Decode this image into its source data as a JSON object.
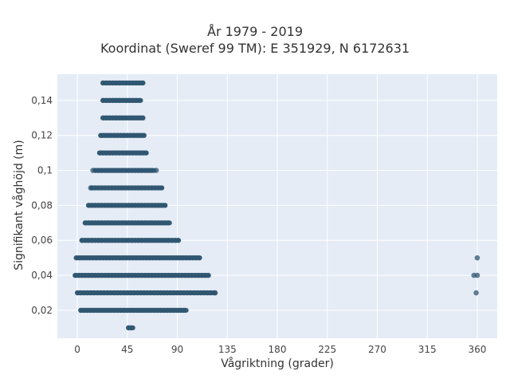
{
  "chart_data": {
    "type": "scatter",
    "title": "År 1979 - 2019",
    "subtitle": "Koordinat (Sweref 99 TM): E 351929, N 6172631",
    "xlabel": "Vågriktning (grader)",
    "ylabel": "Signifikant våghöjd (m)",
    "xlim": [
      -18,
      378
    ],
    "ylim": [
      0.004,
      0.155
    ],
    "x_ticks": [
      0,
      45,
      90,
      135,
      180,
      225,
      270,
      315,
      360
    ],
    "y_ticks": [
      0.02,
      0.04,
      0.06,
      0.08,
      0.1,
      0.12,
      0.14
    ],
    "y_tick_labels": [
      "0,02",
      "0,04",
      "0,06",
      "0,08",
      "0,1",
      "0,12",
      "0,14"
    ],
    "grid": true,
    "marker_color": "#2f5670",
    "bands": [
      {
        "y": 0.01,
        "x_min": 46,
        "x_max": 50
      },
      {
        "y": 0.02,
        "x_min": 3,
        "x_max": 98
      },
      {
        "y": 0.03,
        "x_min": 0,
        "x_max": 124
      },
      {
        "y": 0.04,
        "x_min": -2,
        "x_max": 118
      },
      {
        "y": 0.05,
        "x_min": -1,
        "x_max": 110
      },
      {
        "y": 0.06,
        "x_min": 4,
        "x_max": 91
      },
      {
        "y": 0.07,
        "x_min": 7,
        "x_max": 83
      },
      {
        "y": 0.08,
        "x_min": 10,
        "x_max": 79
      },
      {
        "y": 0.09,
        "x_min": 13,
        "x_max": 76
      },
      {
        "y": 0.1,
        "x_min": 16,
        "x_max": 69
      },
      {
        "y": 0.11,
        "x_min": 20,
        "x_max": 62
      },
      {
        "y": 0.12,
        "x_min": 21,
        "x_max": 60
      },
      {
        "y": 0.13,
        "x_min": 23,
        "x_max": 59
      },
      {
        "y": 0.14,
        "x_min": 23,
        "x_max": 57
      },
      {
        "y": 0.15,
        "x_min": 23,
        "x_max": 59
      }
    ],
    "outliers": [
      {
        "x": 14,
        "y": 0.1
      },
      {
        "x": 71,
        "y": 0.1
      },
      {
        "x": 12,
        "y": 0.09
      },
      {
        "x": 124,
        "y": 0.03
      },
      {
        "x": 360,
        "y": 0.05
      },
      {
        "x": 357,
        "y": 0.04
      },
      {
        "x": 360,
        "y": 0.04
      },
      {
        "x": 359,
        "y": 0.03
      }
    ]
  }
}
